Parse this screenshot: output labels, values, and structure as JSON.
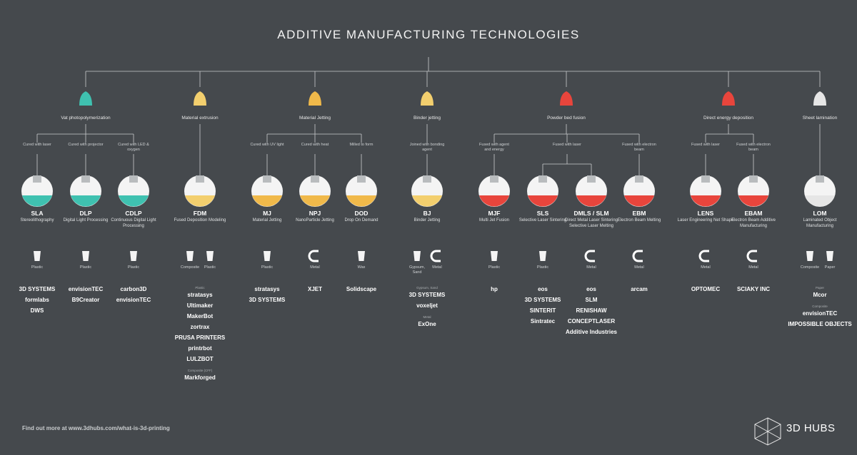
{
  "title": "ADDITIVE MANUFACTURING TECHNOLOGIES",
  "families": [
    {
      "label": "Vat photopolymerization",
      "branches": [
        {
          "method": "Cured with laser",
          "technologies": [
            {
              "abbr": "SLA",
              "name": "Stereolithography",
              "materials": [
                "Plastic"
              ],
              "companies": [
                {
                  "items": [
                    "3D SYSTEMS",
                    "formlabs",
                    "DWS"
                  ]
                }
              ]
            }
          ]
        },
        {
          "method": "Cured with projector",
          "technologies": [
            {
              "abbr": "DLP",
              "name": "Digital Light Processing",
              "materials": [
                "Plastic"
              ],
              "companies": [
                {
                  "items": [
                    "envisionTEC",
                    "B9Creator"
                  ]
                }
              ]
            }
          ]
        },
        {
          "method": "Cured with LED & oxygen",
          "technologies": [
            {
              "abbr": "CDLP",
              "name": "Continuous Digital Light Processing",
              "materials": [
                "Plastic"
              ],
              "companies": [
                {
                  "items": [
                    "carbon3D",
                    "envisionTEC"
                  ]
                }
              ]
            }
          ]
        }
      ]
    },
    {
      "label": "Material extrusion",
      "branches": [
        {
          "technologies": [
            {
              "abbr": "FDM",
              "name": "Fused Deposition Modeling",
              "materials": [
                "Composite",
                "Plastic"
              ],
              "companies": [
                {
                  "heading": "Plastic",
                  "items": [
                    "stratasys",
                    "Ultimaker",
                    "MakerBot",
                    "zortrax",
                    "PRUSA PRINTERS",
                    "printrbot",
                    "LULZBOT"
                  ]
                },
                {
                  "heading": "Composite (CFF)",
                  "items": [
                    "Markforged"
                  ]
                }
              ]
            }
          ]
        }
      ]
    },
    {
      "label": "Material Jetting",
      "branches": [
        {
          "method": "Cured with UV light",
          "technologies": [
            {
              "abbr": "MJ",
              "name": "Material Jetting",
              "materials": [
                "Plastic"
              ],
              "companies": [
                {
                  "items": [
                    "stratasys",
                    "3D SYSTEMS"
                  ]
                }
              ]
            }
          ]
        },
        {
          "method": "Cured with heat",
          "technologies": [
            {
              "abbr": "NPJ",
              "name": "NanoParticle Jetting",
              "materials": [
                "Metal"
              ],
              "companies": [
                {
                  "items": [
                    "XJET"
                  ]
                }
              ]
            }
          ]
        },
        {
          "method": "Milled to form",
          "technologies": [
            {
              "abbr": "DOD",
              "name": "Drop On Demand",
              "materials": [
                "Wax"
              ],
              "companies": [
                {
                  "items": [
                    "Solidscape"
                  ]
                }
              ]
            }
          ]
        }
      ]
    },
    {
      "label": "Binder jetting",
      "branches": [
        {
          "method": "Joined with bonding agent",
          "technologies": [
            {
              "abbr": "BJ",
              "name": "Binder Jetting",
              "materials": [
                "Gypsum, Sand",
                "Metal"
              ],
              "companies": [
                {
                  "heading": "Gypsum, Sand",
                  "items": [
                    "3D SYSTEMS",
                    "voxeljet"
                  ]
                },
                {
                  "heading": "Metal",
                  "items": [
                    "ExOne"
                  ]
                }
              ]
            }
          ]
        }
      ]
    },
    {
      "label": "Powder bed fusion",
      "branches": [
        {
          "method": "Fused with agent and energy",
          "technologies": [
            {
              "abbr": "MJF",
              "name": "Multi Jet Fusion",
              "materials": [
                "Plastic"
              ],
              "companies": [
                {
                  "items": [
                    "hp"
                  ]
                }
              ]
            }
          ]
        },
        {
          "method": "Fused with laser",
          "technologies": [
            {
              "abbr": "SLS",
              "name": "Selective Laser Sintering",
              "materials": [
                "Plastic"
              ],
              "companies": [
                {
                  "items": [
                    "eos",
                    "3D SYSTEMS",
                    "SINTERIT",
                    "Sintratec"
                  ]
                }
              ]
            },
            {
              "abbr": "DMLS / SLM",
              "name": "Direct Metal Laser Sintering Selective Laser Melting",
              "materials": [
                "Metal"
              ],
              "companies": [
                {
                  "items": [
                    "eos",
                    "SLM",
                    "RENISHAW",
                    "CONCEPTLASER",
                    "Additive Industries"
                  ]
                }
              ]
            }
          ]
        },
        {
          "method": "Fused with electron beam",
          "technologies": [
            {
              "abbr": "EBM",
              "name": "Electron Beam Melting",
              "materials": [
                "Metal"
              ],
              "companies": [
                {
                  "items": [
                    "arcam"
                  ]
                }
              ]
            }
          ]
        }
      ]
    },
    {
      "label": "Direct energy deposition",
      "branches": [
        {
          "method": "Fused with laser",
          "technologies": [
            {
              "abbr": "LENS",
              "name": "Laser Engineering Net Shape",
              "materials": [
                "Metal"
              ],
              "companies": [
                {
                  "items": [
                    "OPTOMEC"
                  ]
                }
              ]
            }
          ]
        },
        {
          "method": "Fused with electron beam",
          "technologies": [
            {
              "abbr": "EBAM",
              "name": "Electron Beam Additive Manufacturing",
              "materials": [
                "Metal"
              ],
              "companies": [
                {
                  "items": [
                    "SCIAKY INC"
                  ]
                }
              ]
            }
          ]
        }
      ]
    },
    {
      "label": "Sheet lamination",
      "branches": [
        {
          "technologies": [
            {
              "abbr": "LOM",
              "name": "Laminated Object Manufacturing",
              "materials": [
                "Composite",
                "Paper"
              ],
              "companies": [
                {
                  "heading": "Paper",
                  "items": [
                    "Mcor"
                  ]
                },
                {
                  "heading": "Composite",
                  "items": [
                    "envisionTEC",
                    "IMPOSSIBLE OBJECTS"
                  ]
                }
              ]
            }
          ]
        }
      ]
    }
  ],
  "footer": {
    "link": "Find out more at www.3dhubs.com/what-is-3d-printing",
    "brand": "3D HUBS"
  }
}
